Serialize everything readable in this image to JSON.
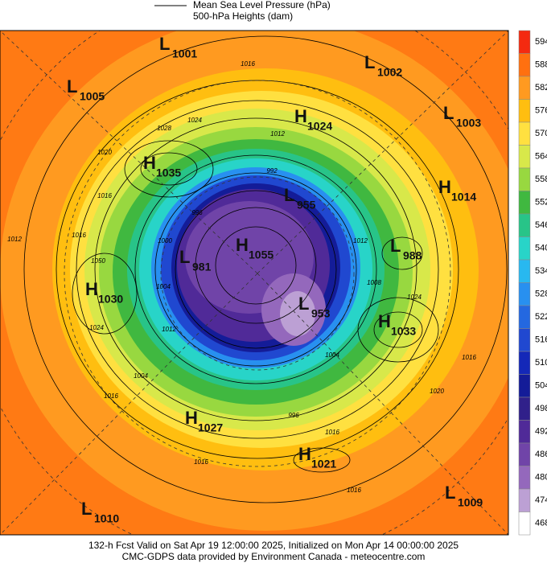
{
  "header": {
    "line_legend": "Mean Sea Level Pressure (hPa)",
    "fill_legend": "500-hPa Heights (dam)"
  },
  "colorbar": {
    "levels": [
      594,
      588,
      582,
      576,
      570,
      564,
      558,
      552,
      546,
      540,
      534,
      528,
      522,
      516,
      510,
      504,
      498,
      492,
      486,
      480,
      474,
      468
    ],
    "colors": [
      "#f42a10",
      "#ff7010",
      "#ff9a20",
      "#ffbe10",
      "#ffe040",
      "#d8e84a",
      "#98d840",
      "#40b840",
      "#28c488",
      "#28d4c8",
      "#28b8f0",
      "#2890f0",
      "#2468e0",
      "#2048d0",
      "#1428b8",
      "#141c98",
      "#30208a",
      "#502a98",
      "#7044a8",
      "#9468bc",
      "#bca0d4",
      "#ffffff"
    ]
  },
  "centers": [
    {
      "type": "L",
      "pressure": "1001"
    },
    {
      "type": "L",
      "pressure": "1005"
    },
    {
      "type": "L",
      "pressure": "1002"
    },
    {
      "type": "H",
      "pressure": "1024"
    },
    {
      "type": "L",
      "pressure": "1003"
    },
    {
      "type": "H",
      "pressure": "1035"
    },
    {
      "type": "H",
      "pressure": "1014"
    },
    {
      "type": "L",
      "pressure": "955"
    },
    {
      "type": "L",
      "pressure": "988"
    },
    {
      "type": "L",
      "pressure": "981"
    },
    {
      "type": "H",
      "pressure": "1055"
    },
    {
      "type": "H",
      "pressure": "1030"
    },
    {
      "type": "L",
      "pressure": "953"
    },
    {
      "type": "H",
      "pressure": "1033"
    },
    {
      "type": "H",
      "pressure": "1027"
    },
    {
      "type": "H",
      "pressure": "1021"
    },
    {
      "type": "L",
      "pressure": "1010"
    },
    {
      "type": "L",
      "pressure": "1009"
    }
  ],
  "contour_labels": [
    "1016",
    "1024",
    "1028",
    "1012",
    "1020",
    "992",
    "1016",
    "996",
    "1012",
    "1016",
    "1050",
    "1000",
    "1004",
    "1024",
    "1012",
    "1004",
    "1016",
    "1008",
    "1012",
    "1024",
    "1016",
    "1020",
    "1016",
    "1016",
    "1016",
    "996",
    "1004"
  ],
  "footer": {
    "line1": "132-h Fcst Valid on Sat Apr 19 12:00:00 2025, Initialized on Mon Apr 14 00:00:00 2025",
    "line2": "CMC-GDPS data provided by Environment Canada - meteocentre.com"
  }
}
